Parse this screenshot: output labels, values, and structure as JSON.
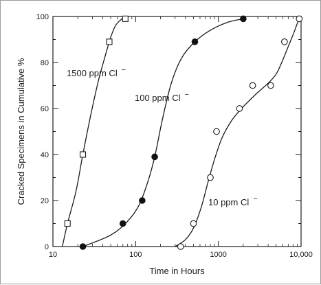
{
  "chart_data": {
    "type": "scatter",
    "xlabel": "Time in Hours",
    "ylabel": "Cracked Specimens in Cumulative %",
    "x_scale": "log",
    "xlim": [
      10,
      10000
    ],
    "ylim": [
      0,
      100
    ],
    "x_ticks": [
      {
        "value": 10,
        "label": "10"
      },
      {
        "value": 100,
        "label": "100"
      },
      {
        "value": 1000,
        "label": "1000"
      },
      {
        "value": 10000,
        "label": "10,000"
      }
    ],
    "y_ticks": [
      0,
      20,
      40,
      60,
      80,
      100
    ],
    "grid": false,
    "series": [
      {
        "name": "1500 ppm Cl",
        "name_sup": "−",
        "marker": "open-square",
        "x": [
          15,
          23,
          48,
          75
        ],
        "y": [
          10,
          40,
          89,
          99
        ],
        "curve_x": [
          13,
          15,
          19,
          23,
          29,
          36,
          43,
          50,
          57,
          66,
          77
        ],
        "curve_y": [
          0,
          10,
          24,
          40,
          58,
          73,
          83,
          91,
          96,
          98.5,
          100
        ]
      },
      {
        "name": "100 ppm Cl",
        "name_sup": "−",
        "marker": "filled-circle",
        "x": [
          23,
          70,
          120,
          170,
          520,
          2000
        ],
        "y": [
          0,
          10,
          20,
          39,
          89,
          99
        ],
        "curve_x": [
          23,
          50,
          80,
          110,
          140,
          170,
          210,
          270,
          360,
          520,
          800,
          1300,
          2000
        ],
        "curve_y": [
          0,
          5,
          11,
          18,
          28,
          39,
          55,
          71,
          82,
          89,
          94,
          97.5,
          99
        ]
      },
      {
        "name": "10 ppm Cl",
        "name_sup": "−",
        "marker": "open-circle",
        "x": [
          350,
          500,
          800,
          950,
          1800,
          2600,
          4300,
          6300,
          9500
        ],
        "y": [
          0,
          10,
          30,
          50,
          60,
          70,
          70,
          89,
          99
        ],
        "curve_x": [
          300,
          400,
          500,
          620,
          750,
          900,
          1100,
          1400,
          1800,
          2300,
          3000,
          4000,
          5000,
          6000,
          7000,
          8000,
          9000,
          9500
        ],
        "curve_y": [
          0,
          3,
          8,
          17,
          28,
          38,
          47,
          54,
          59,
          63,
          67,
          71,
          75,
          81,
          87,
          92,
          97,
          99
        ]
      }
    ]
  }
}
